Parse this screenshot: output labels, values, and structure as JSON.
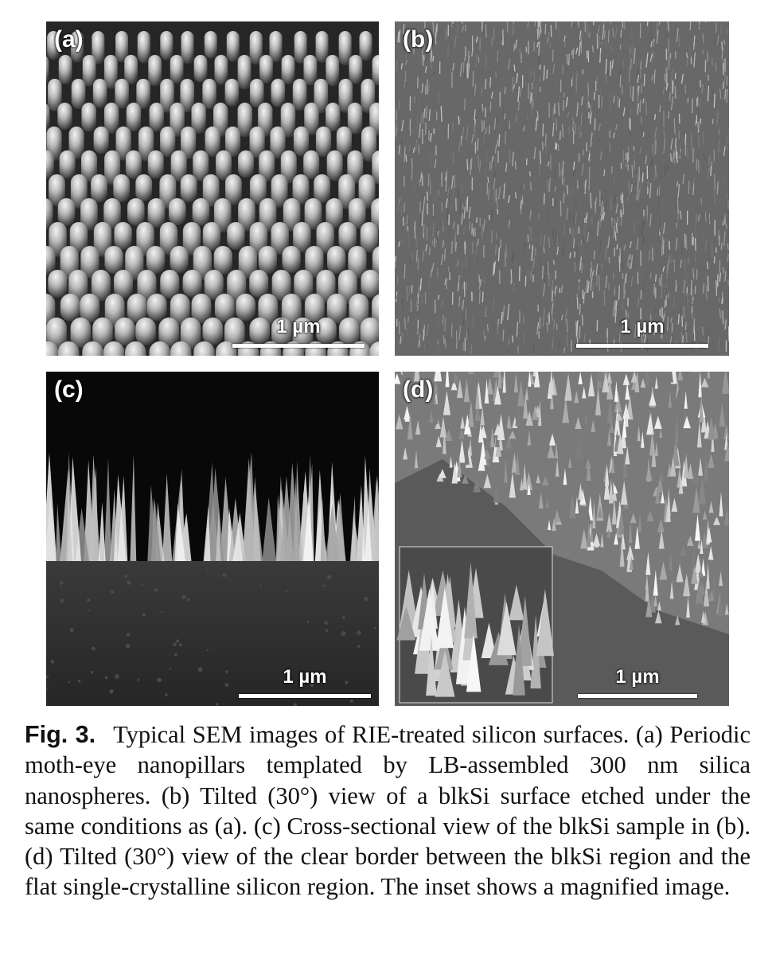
{
  "figure": {
    "panels": [
      {
        "label": "(a)",
        "scale": "1 µm"
      },
      {
        "label": "(b)",
        "scale": "1 µm"
      },
      {
        "label": "(c)",
        "scale": "1 µm"
      },
      {
        "label": "(d)",
        "scale": "1 µm"
      }
    ],
    "caption": {
      "fig_number": "Fig. 3.",
      "text": "Typical SEM images of RIE-treated silicon surfaces. (a) Periodic moth-eye nanopillars templated by LB-assembled 300 nm silica nanospheres. (b) Tilted (30°) view of a blkSi surface etched under the same conditions as (a). (c) Cross-sectional view of the blkSi sample in (b). (d) Tilted (30°) view of the clear border between the blkSi region and the flat single-crystalline silicon region. The inset shows a magnified image."
    }
  }
}
